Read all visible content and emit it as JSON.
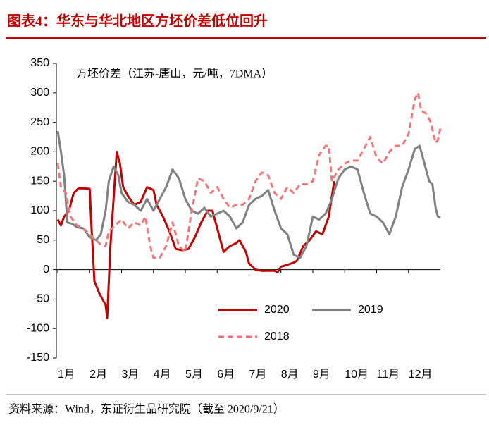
{
  "chart_data": {
    "type": "line",
    "title": "图表4：华东与华北地区方坯价差低位回升",
    "annotation": "方坯价差（江苏-唐山，元/吨，7DMA）",
    "source": "资料来源：Wind，东证衍生品研究院（截至 2020/9/21）",
    "xlim": [
      0,
      12
    ],
    "xticks": [
      {
        "value": 0,
        "label": "1月"
      },
      {
        "value": 1,
        "label": "2月"
      },
      {
        "value": 2,
        "label": "3月"
      },
      {
        "value": 3,
        "label": "4月"
      },
      {
        "value": 4,
        "label": "5月"
      },
      {
        "value": 5,
        "label": "6月"
      },
      {
        "value": 6,
        "label": "7月"
      },
      {
        "value": 7,
        "label": "8月"
      },
      {
        "value": 8,
        "label": "9月"
      },
      {
        "value": 9,
        "label": "10月"
      },
      {
        "value": 10,
        "label": "11月"
      },
      {
        "value": 11,
        "label": "12月"
      }
    ],
    "ylim": [
      -150,
      350
    ],
    "yticks": [
      -150,
      -100,
      -50,
      0,
      50,
      100,
      150,
      200,
      250,
      300,
      350
    ],
    "series": [
      {
        "name": "2020",
        "color": "#c00000",
        "dash": false,
        "x": [
          0,
          0.1,
          0.2,
          0.35,
          0.5,
          0.65,
          0.8,
          1.0,
          1.05,
          1.15,
          1.3,
          1.5,
          1.55,
          1.65,
          1.75,
          1.85,
          1.95,
          2.05,
          2.2,
          2.4,
          2.6,
          2.8,
          3.0,
          3.1,
          3.3,
          3.5,
          3.7,
          3.9,
          4.1,
          4.3,
          4.5,
          4.7,
          4.85,
          5.0,
          5.2,
          5.4,
          5.6,
          5.7,
          5.9,
          6.0,
          6.2,
          6.4,
          6.6,
          6.8,
          6.9,
          7.0,
          7.2,
          7.4,
          7.5,
          7.7,
          7.9,
          8.1,
          8.3,
          8.5,
          8.67
        ],
        "values": [
          85,
          75,
          90,
          100,
          130,
          138,
          138,
          137,
          80,
          -20,
          -40,
          -60,
          -82,
          40,
          120,
          200,
          180,
          140,
          125,
          110,
          115,
          140,
          135,
          110,
          90,
          65,
          35,
          33,
          35,
          55,
          80,
          100,
          100,
          70,
          30,
          40,
          45,
          50,
          30,
          10,
          0,
          -2,
          -2,
          -2,
          -4,
          5,
          8,
          12,
          15,
          40,
          50,
          65,
          60,
          90,
          150
        ]
      },
      {
        "name": "2019",
        "color": "#808080",
        "dash": false,
        "x": [
          0,
          0.1,
          0.2,
          0.3,
          0.45,
          0.6,
          0.8,
          1.0,
          1.2,
          1.35,
          1.5,
          1.6,
          1.75,
          1.9,
          2.0,
          2.2,
          2.4,
          2.6,
          2.8,
          3.0,
          3.2,
          3.4,
          3.6,
          3.8,
          4.0,
          4.2,
          4.4,
          4.6,
          4.8,
          5.0,
          5.2,
          5.4,
          5.6,
          5.8,
          6.0,
          6.2,
          6.4,
          6.6,
          6.8,
          7.0,
          7.2,
          7.4,
          7.6,
          7.8,
          8.0,
          8.2,
          8.4,
          8.6,
          8.8,
          9.0,
          9.2,
          9.4,
          9.6,
          9.8,
          10.0,
          10.2,
          10.4,
          10.6,
          10.8,
          11.0,
          11.2,
          11.35,
          11.5,
          11.65,
          11.75,
          11.85,
          11.92,
          12.0
        ],
        "values": [
          235,
          200,
          160,
          80,
          78,
          72,
          70,
          55,
          50,
          60,
          100,
          150,
          175,
          160,
          130,
          115,
          110,
          100,
          120,
          100,
          120,
          140,
          170,
          155,
          120,
          100,
          95,
          105,
          90,
          95,
          100,
          90,
          70,
          80,
          110,
          120,
          125,
          135,
          100,
          70,
          60,
          25,
          20,
          40,
          90,
          85,
          95,
          120,
          155,
          170,
          175,
          170,
          130,
          95,
          90,
          80,
          60,
          90,
          140,
          170,
          205,
          210,
          180,
          150,
          145,
          105,
          90,
          88
        ]
      },
      {
        "name": "2018",
        "color": "#f4777b",
        "dash": true,
        "x": [
          0,
          0.1,
          0.25,
          0.4,
          0.6,
          0.8,
          1.0,
          1.2,
          1.4,
          1.5,
          1.6,
          1.8,
          2.0,
          2.2,
          2.4,
          2.6,
          2.75,
          2.9,
          3.0,
          3.2,
          3.4,
          3.6,
          3.8,
          4.0,
          4.2,
          4.4,
          4.6,
          4.8,
          5.0,
          5.2,
          5.4,
          5.6,
          5.8,
          6.0,
          6.2,
          6.4,
          6.6,
          6.8,
          7.0,
          7.2,
          7.4,
          7.6,
          7.8,
          8.0,
          8.2,
          8.4,
          8.5,
          8.6,
          8.8,
          9.0,
          9.2,
          9.4,
          9.6,
          9.8,
          10.0,
          10.2,
          10.4,
          10.6,
          10.8,
          11.0,
          11.2,
          11.3,
          11.4,
          11.55,
          11.7,
          11.85,
          11.92,
          12.0
        ],
        "values": [
          180,
          140,
          130,
          90,
          75,
          70,
          60,
          50,
          40,
          40,
          65,
          75,
          85,
          70,
          80,
          75,
          90,
          40,
          20,
          20,
          40,
          80,
          40,
          30,
          100,
          155,
          150,
          130,
          140,
          120,
          105,
          110,
          110,
          120,
          150,
          165,
          160,
          130,
          120,
          140,
          130,
          145,
          145,
          150,
          195,
          210,
          210,
          150,
          170,
          180,
          185,
          185,
          205,
          225,
          190,
          180,
          200,
          210,
          210,
          230,
          290,
          300,
          270,
          265,
          250,
          215,
          220,
          240
        ]
      }
    ]
  }
}
